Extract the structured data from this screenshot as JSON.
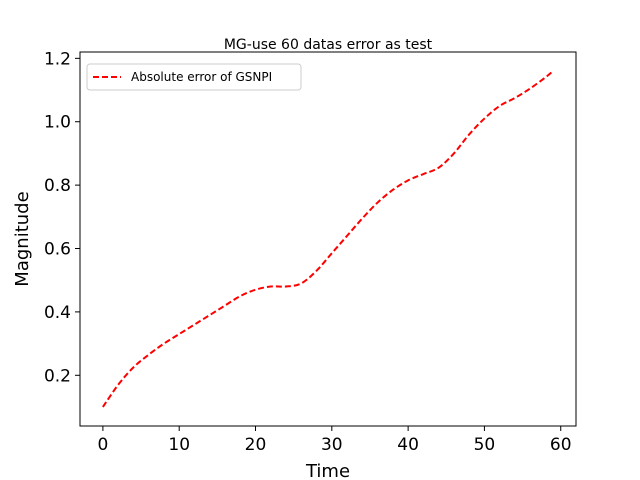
{
  "chart_data": {
    "type": "line",
    "title": "MG-use 60 datas error as test",
    "xlabel": "Time",
    "ylabel": "Magnitude",
    "xlim": [
      -3,
      62
    ],
    "ylim": [
      0.04,
      1.22
    ],
    "xticks": [
      0,
      10,
      20,
      30,
      40,
      50,
      60
    ],
    "yticks": [
      0.2,
      0.4,
      0.6,
      0.8,
      1.0,
      1.2
    ],
    "xtick_labels": [
      "0",
      "10",
      "20",
      "30",
      "40",
      "50",
      "60"
    ],
    "ytick_labels": [
      "0.2",
      "0.4",
      "0.6",
      "0.8",
      "1.0",
      "1.2"
    ],
    "grid": false,
    "legend_position": "upper-left",
    "series": [
      {
        "name": "Absolute error of GSNPI",
        "color": "#ff0000",
        "line_style": "dashed",
        "x": [
          0,
          2,
          4,
          6,
          8,
          10,
          12,
          14,
          16,
          18,
          20,
          22,
          24,
          26,
          28,
          30,
          32,
          34,
          36,
          38,
          40,
          42,
          44,
          46,
          48,
          50,
          52,
          54,
          56,
          58,
          59
        ],
        "y": [
          0.1,
          0.17,
          0.225,
          0.265,
          0.3,
          0.33,
          0.36,
          0.39,
          0.42,
          0.45,
          0.47,
          0.48,
          0.48,
          0.49,
          0.53,
          0.585,
          0.64,
          0.695,
          0.745,
          0.785,
          0.815,
          0.835,
          0.855,
          0.9,
          0.96,
          1.01,
          1.05,
          1.075,
          1.105,
          1.14,
          1.16
        ]
      }
    ]
  }
}
